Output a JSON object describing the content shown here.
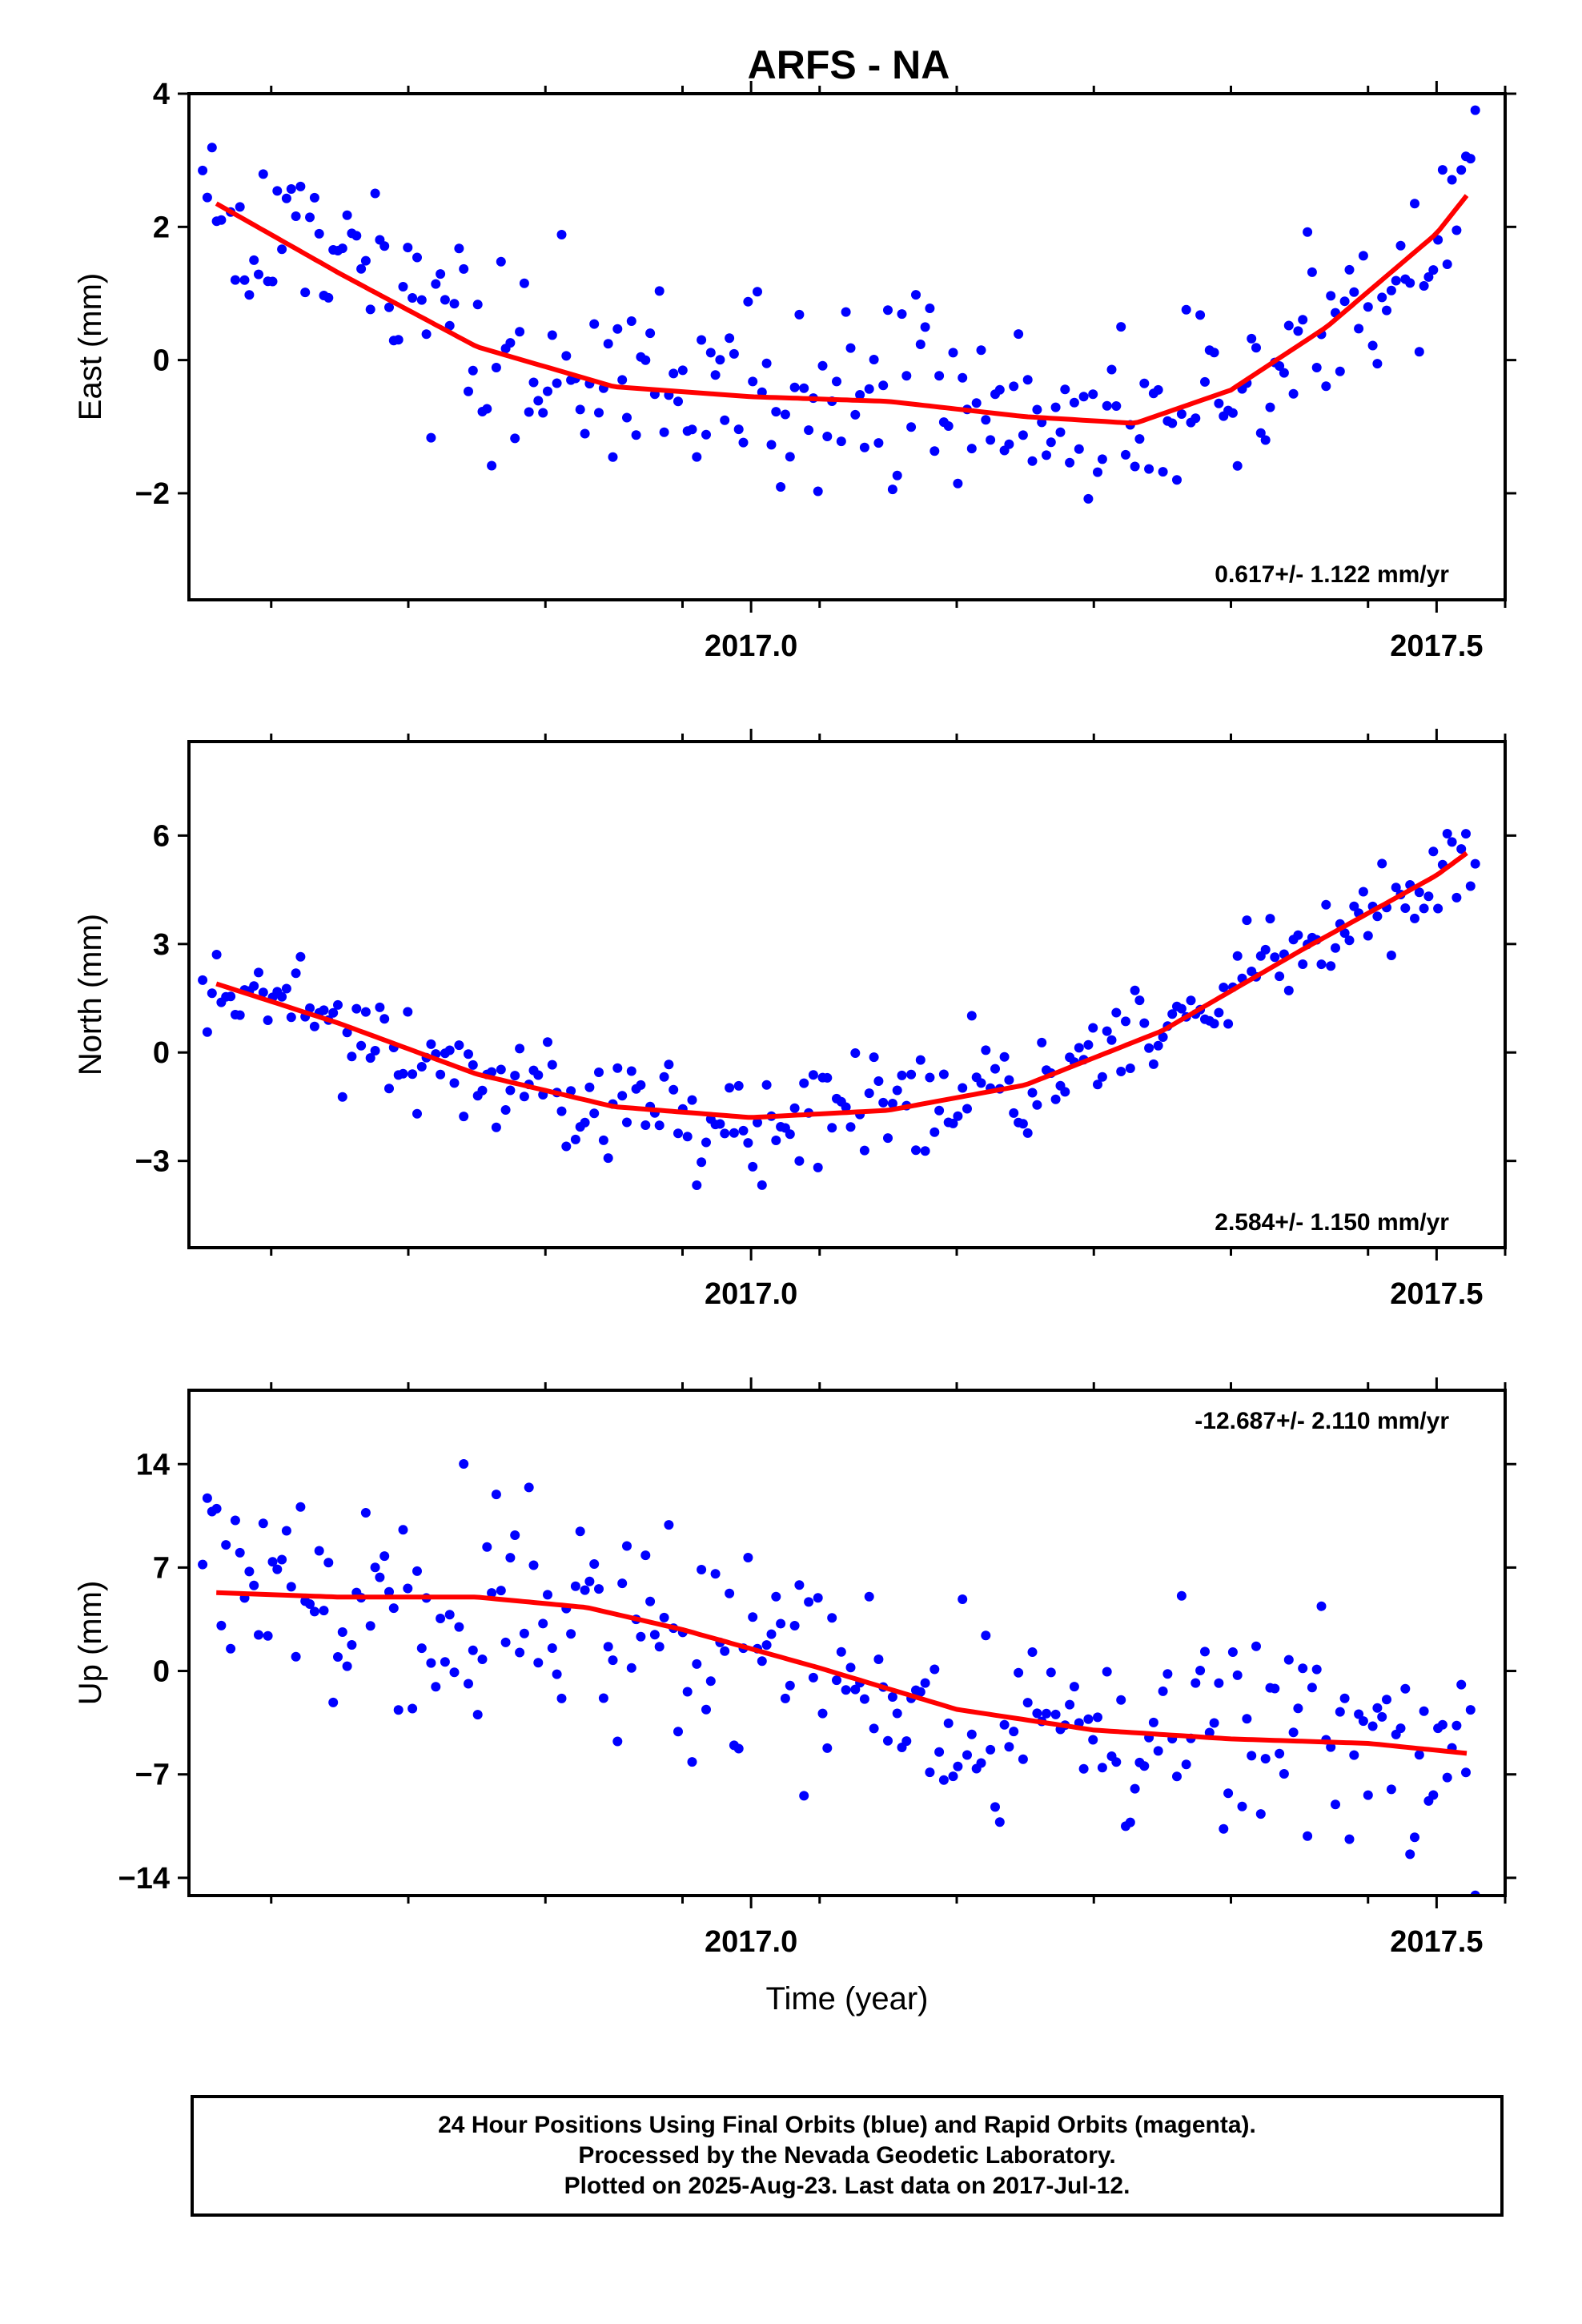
{
  "title": "ARFS - NA",
  "footer": {
    "line1": "24 Hour Positions Using Final Orbits (blue) and Rapid Orbits (magenta).",
    "line2": "Processed by the Nevada Geodetic Laboratory.",
    "line3": "Plotted on 2025-Aug-23. Last data on 2017-Jul-12."
  },
  "colors": {
    "points": "#0000ff",
    "fit": "#ff0000",
    "frame": "#000000"
  },
  "chart_data": [
    {
      "type": "scatter",
      "panel": "east",
      "ylabel": "East (mm)",
      "xlim": [
        2016.59,
        2017.55
      ],
      "ylim": [
        -3.6,
        4.0
      ],
      "yticks": [
        -2,
        0,
        2,
        4
      ],
      "xticks": [
        2017.0,
        2017.5
      ],
      "rate": "0.617+/- 1.122 mm/yr",
      "rate_position": "bottom-right",
      "fit_x": [
        2016.61,
        2016.7,
        2016.8,
        2016.9,
        2017.0,
        2017.1,
        2017.2,
        2017.28,
        2017.35,
        2017.42,
        2017.5,
        2017.525
      ],
      "fit_y": [
        2.35,
        1.3,
        0.2,
        -0.4,
        -0.55,
        -0.62,
        -0.85,
        -0.95,
        -0.45,
        0.5,
        1.9,
        2.55
      ]
    },
    {
      "type": "scatter",
      "panel": "north",
      "ylabel": "North (mm)",
      "xlim": [
        2016.59,
        2017.55
      ],
      "ylim": [
        -5.4,
        8.6
      ],
      "yticks": [
        -3,
        0,
        3,
        6
      ],
      "xticks": [
        2017.0,
        2017.5
      ],
      "rate": "2.584+/- 1.150 mm/yr",
      "rate_position": "bottom-right",
      "fit_x": [
        2016.61,
        2016.7,
        2016.8,
        2016.9,
        2017.0,
        2017.1,
        2017.2,
        2017.3,
        2017.4,
        2017.5,
        2017.525
      ],
      "fit_y": [
        1.9,
        0.8,
        -0.6,
        -1.5,
        -1.8,
        -1.6,
        -0.9,
        0.6,
        2.8,
        4.9,
        5.6
      ]
    },
    {
      "type": "scatter",
      "panel": "up",
      "ylabel": "Up (mm)",
      "xlabel": "Time (year)",
      "xlim": [
        2016.59,
        2017.55
      ],
      "ylim": [
        -15.2,
        19.0
      ],
      "yticks": [
        -14,
        -7,
        0,
        7,
        14
      ],
      "xticks": [
        2017.0,
        2017.5
      ],
      "rate": "-12.687+/- 2.110 mm/yr",
      "rate_position": "top-right",
      "fit_x": [
        2016.61,
        2016.7,
        2016.8,
        2016.88,
        2016.95,
        2017.05,
        2017.15,
        2017.25,
        2017.35,
        2017.45,
        2017.525
      ],
      "fit_y": [
        5.3,
        5.0,
        5.0,
        4.3,
        2.8,
        0.2,
        -2.6,
        -4.0,
        -4.6,
        -4.9,
        -5.6
      ]
    }
  ]
}
